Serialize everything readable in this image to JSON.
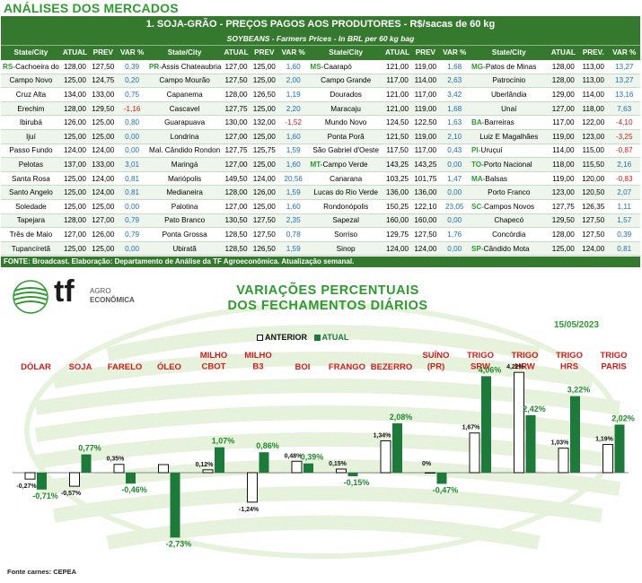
{
  "header": {
    "section_title": "ANÁLISES DOS MERCADOS"
  },
  "table": {
    "title": "1. SOJA-GRÃO - PREÇOS PAGOS AOS PRODUTORES - R$/sacas de 60 kg",
    "subtitle": "SOYBEANS - Farmers Prices - In BRL per 60 kg bag",
    "columns": [
      [
        "State/City",
        "ATUAL",
        "PREV",
        "VAR %"
      ],
      [
        "State/City",
        "ATUAL",
        "PREV",
        "VAR %"
      ],
      [
        "State/City",
        "ATUAL",
        "PREV",
        "VAR %"
      ],
      [
        "State/City",
        "ATUAL",
        "PREV.",
        "VAR %"
      ]
    ],
    "blocks": [
      [
        [
          "RS-",
          "Cachoeira do Sul",
          "128,00",
          "127,50",
          "0,39"
        ],
        [
          "",
          "Campo Novo",
          "125,00",
          "124,75",
          "0,20"
        ],
        [
          "",
          "Cruz Alta",
          "134,00",
          "133,00",
          "0,75"
        ],
        [
          "",
          "Erechim",
          "128,00",
          "129,50",
          "-1,16"
        ],
        [
          "",
          "Ibirubá",
          "126,00",
          "125,00",
          "0,80"
        ],
        [
          "",
          "Ijuí",
          "125,00",
          "125,00",
          "0,00"
        ],
        [
          "",
          "Passo Fundo",
          "124,00",
          "124,00",
          "0,00"
        ],
        [
          "",
          "Pelotas",
          "137,00",
          "133,00",
          "3,01"
        ],
        [
          "",
          "Santa Rosa",
          "125,00",
          "124,00",
          "0,81"
        ],
        [
          "",
          "Santo Angelo",
          "125,00",
          "124,00",
          "0,81"
        ],
        [
          "",
          "Soledade",
          "125,00",
          "125,00",
          "0,00"
        ],
        [
          "",
          "Tapejara",
          "128,00",
          "127,00",
          "0,79"
        ],
        [
          "",
          "Três de Maio",
          "127,00",
          "126,00",
          "0,79"
        ],
        [
          "",
          "Tupancíretã",
          "125,00",
          "125,00",
          "0,00"
        ]
      ],
      [
        [
          "PR-",
          "Assis Chateaubriand",
          "127,00",
          "125,00",
          "1,60"
        ],
        [
          "",
          "Campo Mourão",
          "127,50",
          "125,00",
          "2,00"
        ],
        [
          "",
          "Capanema",
          "128,00",
          "126,50",
          "1,19"
        ],
        [
          "",
          "Cascavel",
          "127,75",
          "125,00",
          "2,20"
        ],
        [
          "",
          "Guarapuava",
          "130,00",
          "132,00",
          "-1,52"
        ],
        [
          "",
          "Londrina",
          "127,00",
          "125,00",
          "1,60"
        ],
        [
          "",
          "Mal. Cândido Rondon",
          "127,75",
          "125,75",
          "1,59"
        ],
        [
          "",
          "Maringá",
          "127,00",
          "125,00",
          "1,60"
        ],
        [
          "",
          "Mariópolis",
          "149,50",
          "124,00",
          "20,56"
        ],
        [
          "",
          "Medianeira",
          "128,00",
          "126,00",
          "1,59"
        ],
        [
          "",
          "Palotina",
          "127,00",
          "125,00",
          "1,60"
        ],
        [
          "",
          "Pato Branco",
          "130,50",
          "127,50",
          "2,35"
        ],
        [
          "",
          "Ponta Grossa",
          "128,50",
          "127,50",
          "0,78"
        ],
        [
          "",
          "Ubiratã",
          "128,50",
          "126,50",
          "1,59"
        ]
      ],
      [
        [
          "MS-",
          "Caarapó",
          "121,00",
          "119,00",
          "1,68"
        ],
        [
          "",
          "Campo Grande",
          "117,00",
          "114,00",
          "2,63"
        ],
        [
          "",
          "Dourados",
          "121,00",
          "117,00",
          "3,42"
        ],
        [
          "",
          "Maracaju",
          "121,00",
          "119,00",
          "1,68"
        ],
        [
          "",
          "Mundo Novo",
          "124,50",
          "122,50",
          "1,63"
        ],
        [
          "",
          "Ponta Porã",
          "121,50",
          "119,00",
          "2,10"
        ],
        [
          "",
          "São Gabriel d'Oeste",
          "117,50",
          "117,00",
          "0,43"
        ],
        [
          "MT-",
          "Campo Verde",
          "143,25",
          "143,25",
          "0,00"
        ],
        [
          "",
          "Canarana",
          "103,25",
          "101,75",
          "1,47"
        ],
        [
          "",
          "Lucas do Rio Verde",
          "136,00",
          "136,00",
          "0,00"
        ],
        [
          "",
          "Rondonópolis",
          "150,25",
          "122,10",
          "23,05"
        ],
        [
          "",
          "Sapezal",
          "160,00",
          "160,00",
          "0,00"
        ],
        [
          "",
          "Sorriso",
          "129,75",
          "127,50",
          "1,76"
        ],
        [
          "",
          "Sinop",
          "124,00",
          "124,00",
          "0,00"
        ]
      ],
      [
        [
          "MG-",
          "Patos de Minas",
          "128,00",
          "113,00",
          "13,27"
        ],
        [
          "",
          "Patrocínio",
          "128,00",
          "113,00",
          "13,27"
        ],
        [
          "",
          "Uberlândia",
          "129,00",
          "114,00",
          "13,16"
        ],
        [
          "",
          "Unaí",
          "127,00",
          "118,00",
          "7,63"
        ],
        [
          "BA-",
          "Barreiras",
          "117,00",
          "122,00",
          "-4,10"
        ],
        [
          "",
          "Luiz E Magalhães",
          "119,00",
          "123,00",
          "-3,25"
        ],
        [
          "PI-",
          "Uruçuí",
          "114,00",
          "115,00",
          "-0,87"
        ],
        [
          "TO-",
          "Porto Nacional",
          "118,00",
          "115,50",
          "2,16"
        ],
        [
          "MA-",
          "Balsas",
          "119,00",
          "120,00",
          "-0,83"
        ],
        [
          "",
          "Porto Franco",
          "123,00",
          "120,50",
          "2,07"
        ],
        [
          "SC-",
          "Campos Novos",
          "127,75",
          "126,35",
          "1,11"
        ],
        [
          "",
          "Chapecó",
          "129,50",
          "127,50",
          "1,57"
        ],
        [
          "",
          "Concórdia",
          "128,00",
          "127,50",
          "0,39"
        ],
        [
          "SP-",
          "Cândido Mota",
          "125,00",
          "124,00",
          "0,81"
        ]
      ]
    ],
    "source": "FONTE: Broadcast. Elaboração: Departamento de Análise da TF Agroeconômica. Atualização semanal."
  },
  "logo": {
    "text": "tf",
    "sub1": "AGRO",
    "sub2": "ECONÔMICA"
  },
  "chart_data": {
    "type": "bar",
    "title_line1": "VARIAÇÕES PERCENTUAIS",
    "title_line2": "DOS FECHAMENTOS DIÁRIOS",
    "date": "15/05/2023",
    "categories": [
      [
        "DÓLAR"
      ],
      [
        "SOJA"
      ],
      [
        "FARELO"
      ],
      [
        "ÓLEO"
      ],
      [
        "MILHO",
        "CBOT"
      ],
      [
        "MILHO",
        "B3"
      ],
      [
        "BOI"
      ],
      [
        "FRANGO"
      ],
      [
        "BEZERRO"
      ],
      [
        "SUÍNO",
        "(PR)"
      ],
      [
        "TRIGO",
        "SRW"
      ],
      [
        "TRIGO",
        "HRW"
      ],
      [
        "TRIGO",
        "HRS"
      ],
      [
        "TRIGO",
        "PARIS"
      ]
    ],
    "series": [
      {
        "name": "ANTERIOR",
        "values": [
          -0.27,
          -0.57,
          0.35,
          0.34,
          0.12,
          -1.24,
          0.48,
          0.15,
          1.34,
          0,
          1.67,
          4.22,
          1.03,
          1.19
        ],
        "labels": [
          "-0,27%",
          "-0,57%",
          "0,35%",
          "",
          "0,12%",
          "-1,24%",
          "0,48%",
          "0,15%",
          "1,34%",
          "0%",
          "1,67%",
          "4,22%",
          "1,03%",
          "1,19%"
        ]
      },
      {
        "name": "ATUAL",
        "values": [
          -0.71,
          0.77,
          -0.46,
          -2.73,
          1.07,
          0.86,
          0.39,
          -0.15,
          2.08,
          -0.47,
          4.06,
          2.42,
          3.22,
          2.02
        ],
        "labels": [
          "-0,71%",
          "0,77%",
          "-0,46%",
          "-2,73%",
          "1,07%",
          "0,86%",
          "0,39%",
          "-0,15%",
          "2,08%",
          "-0,47%",
          "4,06%",
          "2,42%",
          "3,22%",
          "2,02%"
        ]
      }
    ],
    "colors": {
      "anterior": "#ffffff",
      "atual": "#1e7a3a",
      "category_label": "#d01c1c",
      "value_label": "#1e8a2a"
    }
  },
  "footer": {
    "source": "Fonte carnes: CEPEA"
  }
}
